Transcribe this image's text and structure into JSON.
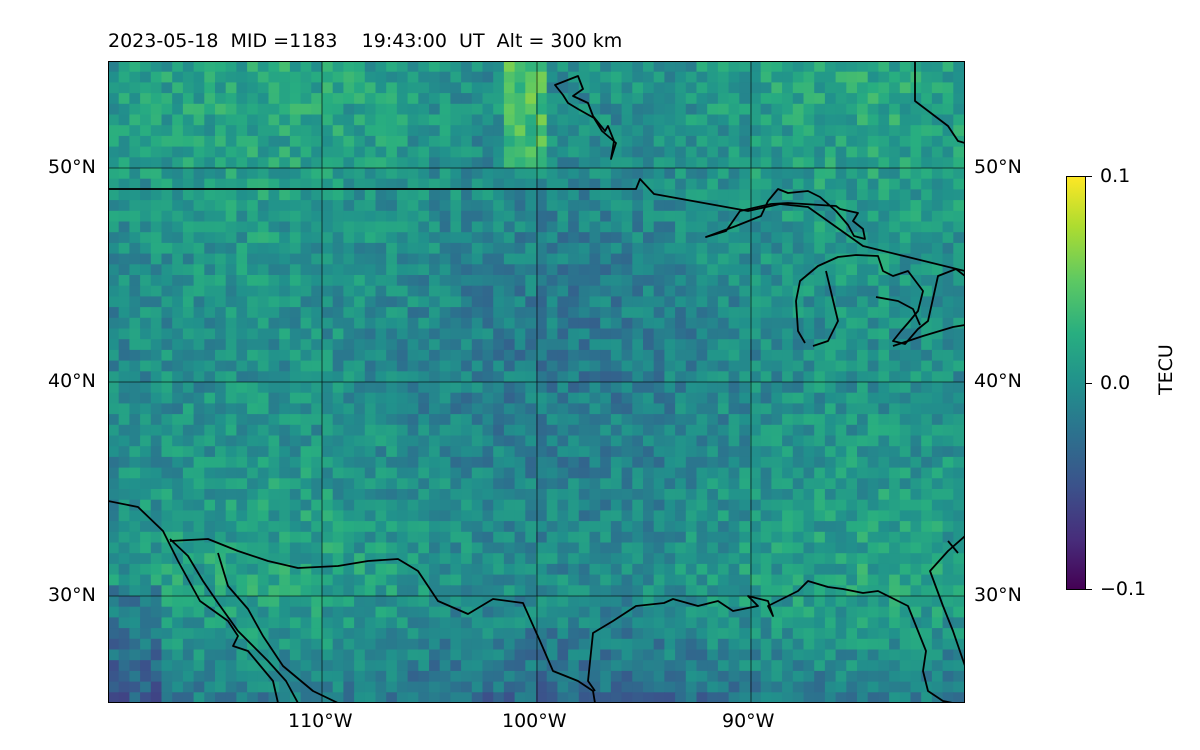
{
  "title": {
    "date": "2023-05-18",
    "mid": "MID =1183",
    "time": "19:43:00  UT",
    "altitude": "Alt = 300 km"
  },
  "map": {
    "lon_range": [
      -120,
      -80
    ],
    "lat_range": [
      25,
      55
    ],
    "lat_ticks": [
      {
        "value": 50,
        "label": "50°N"
      },
      {
        "value": 40,
        "label": "40°N"
      },
      {
        "value": 30,
        "label": "30°N"
      }
    ],
    "lon_ticks": [
      {
        "value": -110,
        "label": "110°W"
      },
      {
        "value": -100,
        "label": "100°W"
      },
      {
        "value": -90,
        "label": "90°W"
      }
    ],
    "colormap": "viridis",
    "coastlines": true,
    "gridlines": true
  },
  "colorbar": {
    "label": "TECU",
    "ticks": [
      {
        "value": 0.1,
        "label": "0.1"
      },
      {
        "value": 0.0,
        "label": "0.0"
      },
      {
        "value": -0.1,
        "label": "−0.1"
      }
    ],
    "min": -0.1,
    "max": 0.1
  }
}
